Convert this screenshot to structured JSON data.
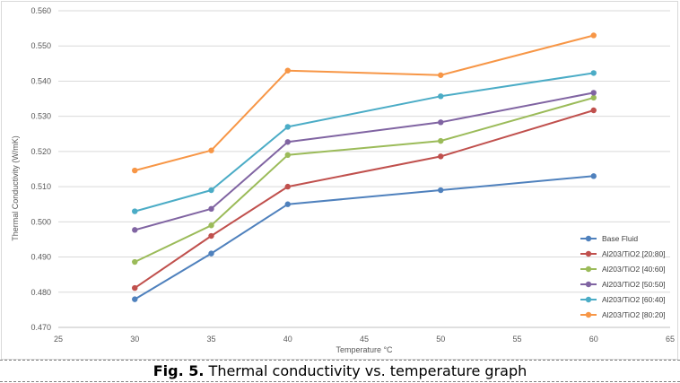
{
  "chart_data": {
    "type": "line",
    "title": "",
    "xlabel": "Temperature °C",
    "ylabel": "Thermal Conductivity (W/mK)",
    "xlim": [
      25,
      65
    ],
    "ylim": [
      0.47,
      0.56
    ],
    "xticks": [
      "25",
      "30",
      "35",
      "40",
      "45",
      "50",
      "55",
      "60",
      "65"
    ],
    "yticks": [
      "0.470",
      "0.480",
      "0.490",
      "0.500",
      "0.510",
      "0.520",
      "0.530",
      "0.540",
      "0.550",
      "0.560"
    ],
    "grid": "horizontal",
    "legend_position": "bottom-right",
    "x": [
      30,
      35,
      40,
      50,
      60
    ],
    "series": [
      {
        "name": "Base Fluid",
        "color": "#4f81bd",
        "values": [
          0.478,
          0.491,
          0.505,
          0.509,
          0.513
        ]
      },
      {
        "name": "Al203/TiO2 [20:80]",
        "color": "#c0504d",
        "values": [
          0.4812,
          0.496,
          0.51,
          0.5186,
          0.5317
        ]
      },
      {
        "name": "Al203/TiO2 [40:60]",
        "color": "#9bbb59",
        "values": [
          0.4886,
          0.499,
          0.519,
          0.523,
          0.5353
        ]
      },
      {
        "name": "Al203/TiO2 [50:50]",
        "color": "#8064a2",
        "values": [
          0.4977,
          0.5037,
          0.5227,
          0.5283,
          0.5367
        ]
      },
      {
        "name": "Al203/TiO2 [60:40]",
        "color": "#4bacc6",
        "values": [
          0.503,
          0.509,
          0.527,
          0.5357,
          0.5423
        ]
      },
      {
        "name": "Al203/TiO2 [80:20]",
        "color": "#f79646",
        "values": [
          0.5146,
          0.5203,
          0.543,
          0.5417,
          0.553
        ]
      }
    ]
  },
  "caption": {
    "label": "Fig. 5.",
    "text": " Thermal conductivity vs. temperature graph"
  }
}
